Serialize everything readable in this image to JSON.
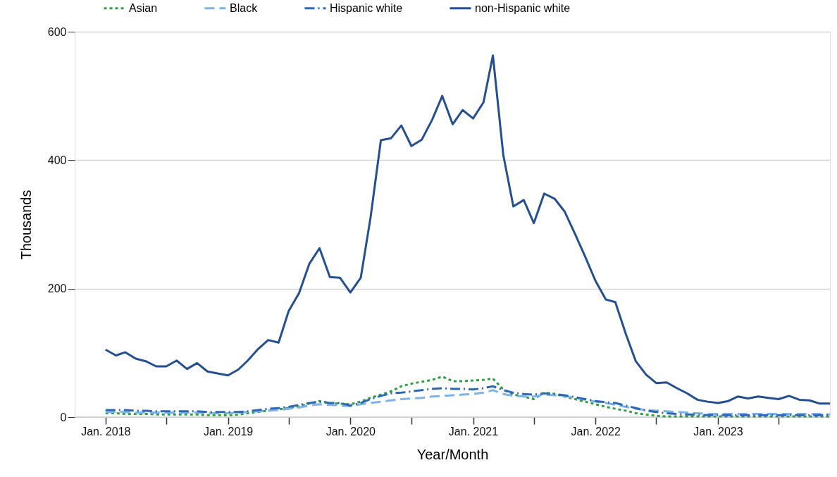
{
  "chart_data": {
    "type": "line",
    "xlabel": "Year/Month",
    "ylabel": "Thousands",
    "x": [
      "2018-01",
      "2018-02",
      "2018-03",
      "2018-04",
      "2018-05",
      "2018-06",
      "2018-07",
      "2018-08",
      "2018-09",
      "2018-10",
      "2018-11",
      "2018-12",
      "2019-01",
      "2019-02",
      "2019-03",
      "2019-04",
      "2019-05",
      "2019-06",
      "2019-07",
      "2019-08",
      "2019-09",
      "2019-10",
      "2019-11",
      "2019-12",
      "2020-01",
      "2020-02",
      "2020-03",
      "2020-04",
      "2020-05",
      "2020-06",
      "2020-07",
      "2020-08",
      "2020-09",
      "2020-10",
      "2020-11",
      "2020-12",
      "2021-01",
      "2021-02",
      "2021-03",
      "2021-04",
      "2021-05",
      "2021-06",
      "2021-07",
      "2021-08",
      "2021-09",
      "2021-10",
      "2021-11",
      "2021-12",
      "2022-01",
      "2022-02",
      "2022-03",
      "2022-04",
      "2022-05",
      "2022-06",
      "2022-07",
      "2022-08",
      "2022-09",
      "2022-10",
      "2022-11",
      "2022-12",
      "2023-01",
      "2023-02",
      "2023-03",
      "2023-04",
      "2023-05",
      "2023-06",
      "2023-07",
      "2023-08",
      "2023-09",
      "2023-10",
      "2023-11",
      "2023-12"
    ],
    "series": [
      {
        "name": "Asian",
        "color": "#2e9e44",
        "line_style": "dotted",
        "values": [
          6,
          6,
          5,
          5,
          5,
          4,
          4,
          4,
          4,
          4,
          3,
          3,
          3,
          4,
          6,
          8,
          10,
          12,
          14,
          17,
          21,
          25,
          22,
          21,
          20,
          24,
          30,
          35,
          40,
          48,
          52,
          55,
          58,
          63,
          56,
          56,
          57,
          58,
          60,
          43,
          35,
          32,
          28,
          38,
          36,
          32,
          28,
          24,
          20,
          16,
          13,
          10,
          6,
          4,
          2,
          1,
          1,
          1,
          1,
          1,
          1,
          1,
          1,
          1,
          1,
          1,
          1,
          1,
          1,
          1,
          1,
          1
        ]
      },
      {
        "name": "Black",
        "color": "#7db3e6",
        "line_style": "dashed",
        "values": [
          8,
          8,
          8,
          7,
          7,
          7,
          7,
          7,
          7,
          7,
          6,
          6,
          6,
          7,
          8,
          9,
          10,
          11,
          13,
          15,
          18,
          20,
          19,
          18,
          17,
          20,
          22,
          24,
          26,
          28,
          29,
          30,
          32,
          33,
          34,
          35,
          36,
          38,
          42,
          36,
          33,
          32,
          32,
          35,
          34,
          33,
          30,
          27,
          24,
          22,
          19,
          16,
          13,
          11,
          10,
          9,
          8,
          7,
          6,
          5,
          5,
          5,
          5,
          5,
          5,
          5,
          5,
          5,
          5,
          5,
          5,
          4
        ]
      },
      {
        "name": "Hispanic white",
        "color": "#2e67b3",
        "line_style": "dashdot",
        "values": [
          11,
          11,
          11,
          10,
          10,
          9,
          9,
          9,
          9,
          9,
          8,
          8,
          8,
          8,
          9,
          11,
          13,
          14,
          16,
          19,
          22,
          24,
          22,
          22,
          18,
          22,
          28,
          33,
          37,
          38,
          40,
          42,
          44,
          45,
          44,
          44,
          43,
          45,
          48,
          42,
          38,
          36,
          35,
          37,
          36,
          34,
          31,
          28,
          25,
          23,
          22,
          18,
          14,
          10,
          8,
          6,
          5,
          4,
          4,
          3,
          3,
          3,
          3,
          3,
          3,
          3,
          3,
          3,
          3,
          3,
          3,
          3
        ]
      },
      {
        "name": "non-Hispanic white",
        "color": "#254f8e",
        "line_style": "solid",
        "values": [
          105,
          96,
          101,
          91,
          87,
          79,
          79,
          88,
          75,
          84,
          71,
          68,
          65,
          74,
          88,
          106,
          120,
          116,
          165,
          193,
          239,
          263,
          218,
          217,
          194,
          217,
          310,
          431,
          434,
          454,
          422,
          432,
          463,
          500,
          456,
          478,
          465,
          490,
          563,
          408,
          328,
          338,
          302,
          348,
          340,
          320,
          285,
          250,
          212,
          183,
          179,
          130,
          87,
          66,
          53,
          54,
          45,
          37,
          27,
          24,
          22,
          25,
          32,
          29,
          32,
          30,
          28,
          33,
          27,
          26,
          21,
          21
        ]
      }
    ],
    "xlim": [
      "2017-10",
      "2023-12"
    ],
    "xticks": [
      {
        "value": "2018-01",
        "label": "Jan. 2018"
      },
      {
        "value": "2018-07",
        "label": null
      },
      {
        "value": "2019-01",
        "label": "Jan. 2019"
      },
      {
        "value": "2019-07",
        "label": null
      },
      {
        "value": "2020-01",
        "label": "Jan. 2020"
      },
      {
        "value": "2020-07",
        "label": null
      },
      {
        "value": "2021-01",
        "label": "Jan. 2021"
      },
      {
        "value": "2021-07",
        "label": null
      },
      {
        "value": "2022-01",
        "label": "Jan. 2022"
      },
      {
        "value": "2022-07",
        "label": null
      },
      {
        "value": "2023-01",
        "label": "Jan. 2023"
      },
      {
        "value": "2023-07",
        "label": null
      }
    ],
    "ylim": [
      0,
      600
    ],
    "yticks": [
      0,
      200,
      400,
      600
    ],
    "grid": "y",
    "legend": "top"
  }
}
